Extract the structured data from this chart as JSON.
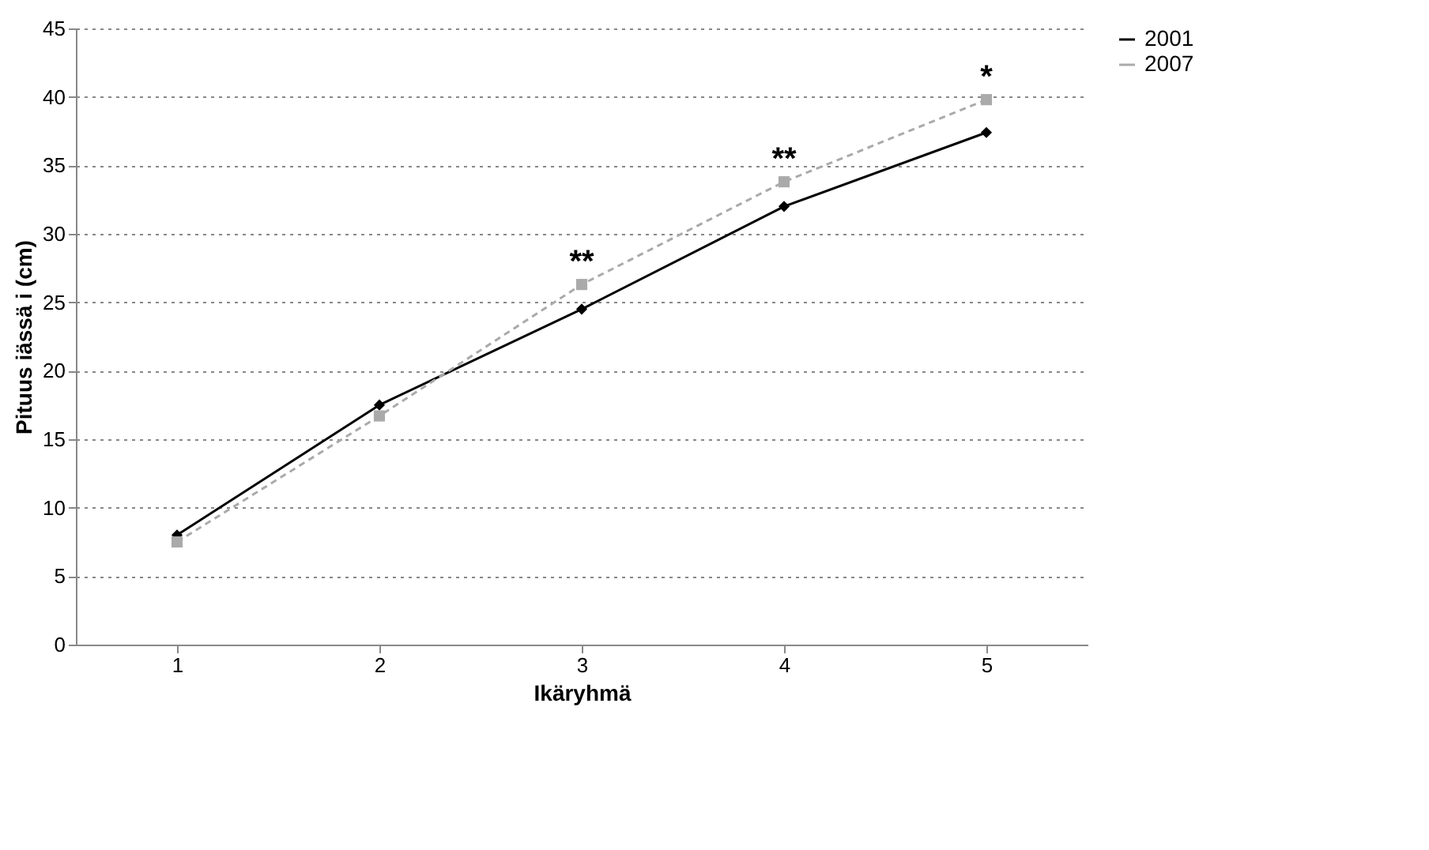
{
  "chart_data": {
    "type": "line",
    "xlabel": "Ikäryhmä",
    "ylabel": "Pituus iässä i (cm)",
    "categories": [
      "1",
      "2",
      "3",
      "4",
      "5"
    ],
    "series": [
      {
        "name": "2001",
        "color": "#000000",
        "marker": "diamond",
        "values": [
          8.0,
          17.5,
          24.5,
          32.0,
          37.4
        ]
      },
      {
        "name": "2007",
        "color": "#aaaaaa",
        "marker": "square",
        "line_style": "dashed",
        "values": [
          7.5,
          16.7,
          26.3,
          33.8,
          39.8
        ]
      }
    ],
    "annotations": [
      {
        "text": "**",
        "x": "3",
        "y": 26.3
      },
      {
        "text": "**",
        "x": "4",
        "y": 33.8
      },
      {
        "text": "*",
        "x": "5",
        "y": 39.8
      }
    ],
    "ylim": [
      0,
      45
    ],
    "yticks": [
      0,
      5,
      10,
      15,
      20,
      25,
      30,
      35,
      40,
      45
    ],
    "grid": "y",
    "legend": "right"
  }
}
